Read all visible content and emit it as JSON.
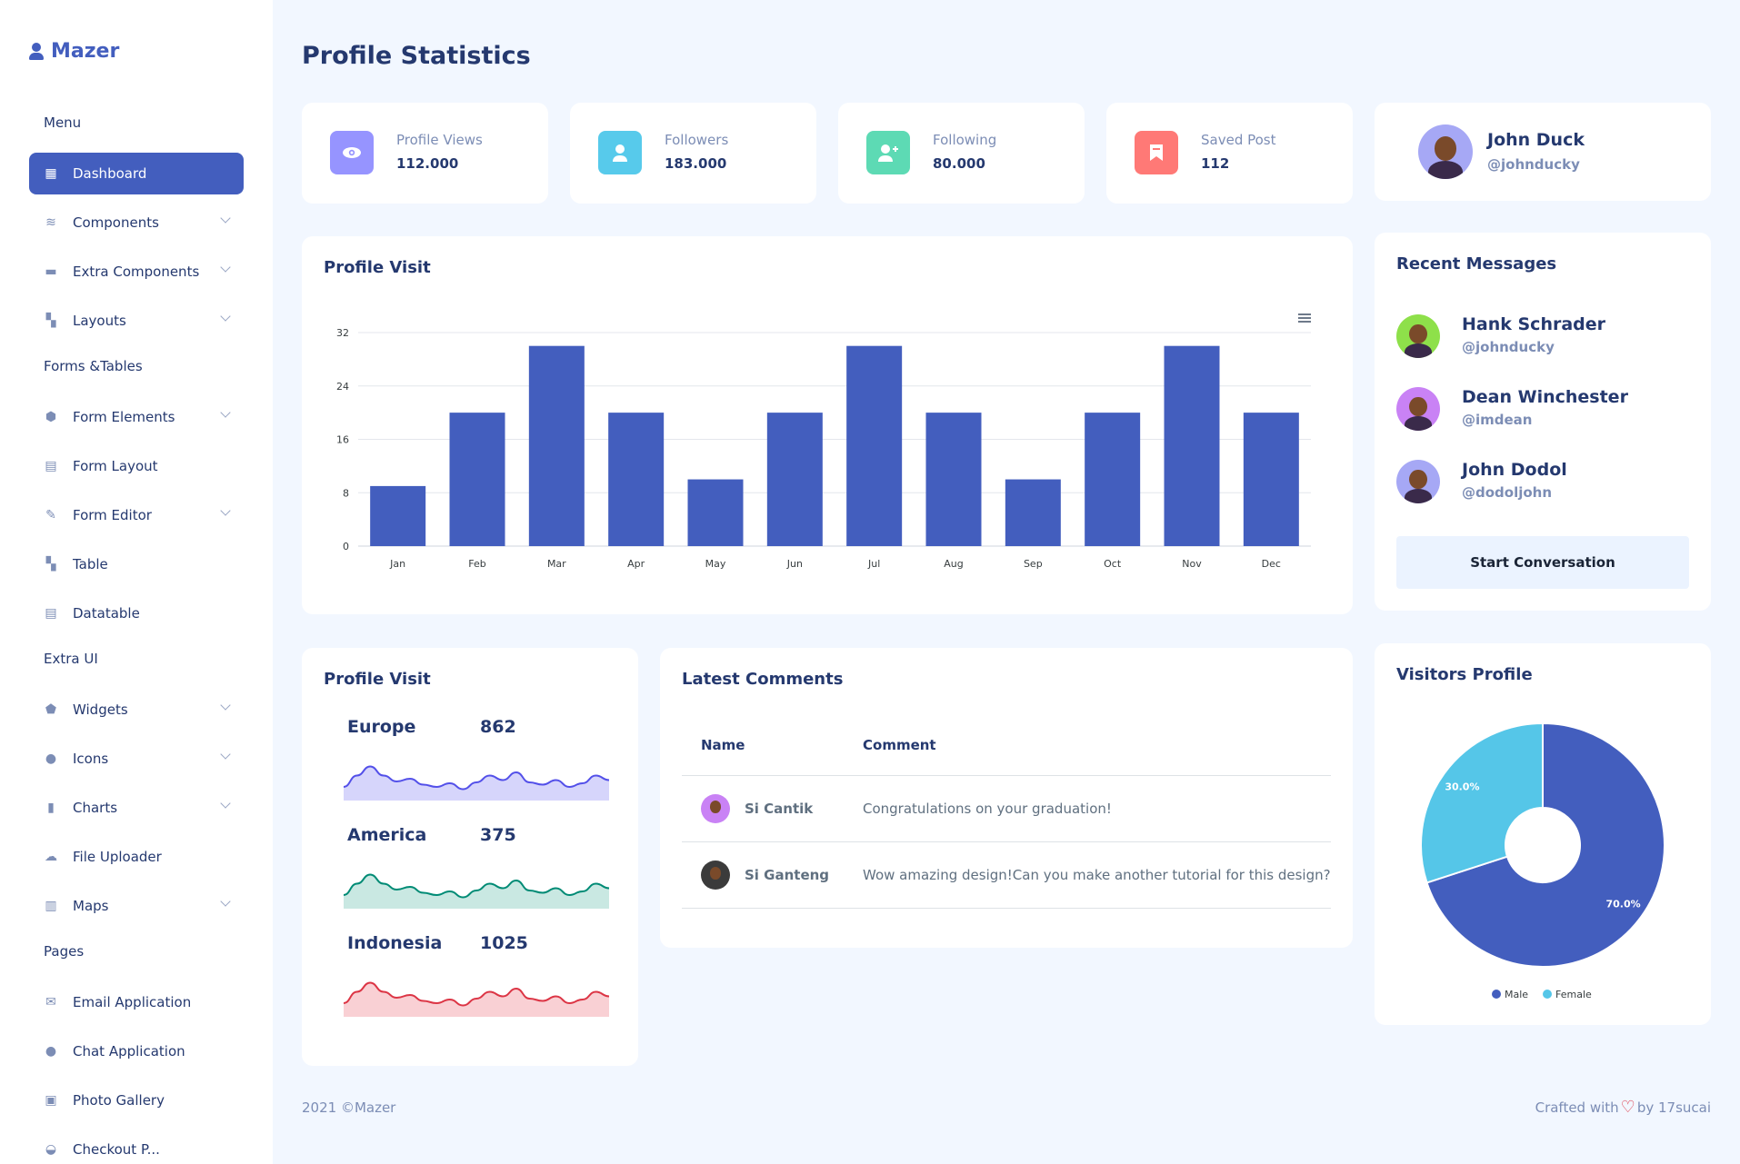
{
  "app": {
    "brand": "Mazer",
    "page_title": "Profile Statistics"
  },
  "sidebar": {
    "sections": [
      {
        "title": "Menu",
        "items": [
          {
            "label": "Dashboard",
            "icon": "grid-icon",
            "active": true,
            "chevron": false
          },
          {
            "label": "Components",
            "icon": "stack-icon",
            "chevron": true
          },
          {
            "label": "Extra Components",
            "icon": "collection-icon",
            "chevron": true
          },
          {
            "label": "Layouts",
            "icon": "layout-icon",
            "chevron": true
          }
        ]
      },
      {
        "title": "Forms &Tables",
        "items": [
          {
            "label": "Form Elements",
            "icon": "hexagon-icon",
            "chevron": true
          },
          {
            "label": "Form Layout",
            "icon": "file-text-icon",
            "chevron": false
          },
          {
            "label": "Form Editor",
            "icon": "pen-icon",
            "chevron": true
          },
          {
            "label": "Table",
            "icon": "table-icon",
            "chevron": false
          },
          {
            "label": "Datatable",
            "icon": "spreadsheet-icon",
            "chevron": false
          }
        ]
      },
      {
        "title": "Extra UI",
        "items": [
          {
            "label": "Widgets",
            "icon": "pentagon-icon",
            "chevron": true
          },
          {
            "label": "Icons",
            "icon": "egg-icon",
            "chevron": true
          },
          {
            "label": "Charts",
            "icon": "bar-chart-icon",
            "chevron": true
          },
          {
            "label": "File Uploader",
            "icon": "cloud-upload-icon",
            "chevron": false
          },
          {
            "label": "Maps",
            "icon": "map-icon",
            "chevron": true
          }
        ]
      },
      {
        "title": "Pages",
        "items": [
          {
            "label": "Email Application",
            "icon": "envelope-icon",
            "chevron": false
          },
          {
            "label": "Chat Application",
            "icon": "chat-icon",
            "chevron": false
          },
          {
            "label": "Photo Gallery",
            "icon": "image-icon",
            "chevron": false
          },
          {
            "label": "Checkout P...",
            "icon": "basket-icon",
            "chevron": false
          }
        ]
      }
    ]
  },
  "stats": [
    {
      "label": "Profile Views",
      "value": "112.000",
      "color": "#9694ff",
      "icon": "eye-icon"
    },
    {
      "label": "Followers",
      "value": "183.000",
      "color": "#57caeb",
      "icon": "user-icon"
    },
    {
      "label": "Following",
      "value": "80.000",
      "color": "#5ddab4",
      "icon": "user-plus-icon"
    },
    {
      "label": "Saved Post",
      "value": "112",
      "color": "#ff7976",
      "icon": "bookmark-icon"
    }
  ],
  "profile": {
    "name": "John Duck",
    "handle": "@johnducky"
  },
  "profile_visit_chart": {
    "title": "Profile Visit",
    "menu_icon": "hamburger-icon"
  },
  "recent_messages": {
    "title": "Recent Messages",
    "items": [
      {
        "name": "Hank Schrader",
        "handle": "@johnducky",
        "avatar_bg": "#8ee04a"
      },
      {
        "name": "Dean Winchester",
        "handle": "@imdean",
        "avatar_bg": "#c982f5"
      },
      {
        "name": "John Dodol",
        "handle": "@dodoljohn",
        "avatar_bg": "#a6a8f5"
      }
    ],
    "button": "Start Conversation"
  },
  "regions": {
    "title": "Profile Visit",
    "items": [
      {
        "name": "Europe",
        "value": "862",
        "color": "#5350e9",
        "fill": "#d6d5fb"
      },
      {
        "name": "America",
        "value": "375",
        "color": "#008b75",
        "fill": "#c9e8e2"
      },
      {
        "name": "Indonesia",
        "value": "1025",
        "color": "#dc3545",
        "fill": "#f9d0d4"
      }
    ]
  },
  "comments": {
    "title": "Latest Comments",
    "headers": [
      "Name",
      "Comment"
    ],
    "rows": [
      {
        "name": "Si Cantik",
        "comment": "Congratulations on your graduation!",
        "avatar_bg": "#c982f5"
      },
      {
        "name": "Si Ganteng",
        "comment": "Wow amazing design!Can you make another tutorial for this design?",
        "avatar_bg": "#3b3b3b"
      }
    ]
  },
  "visitors": {
    "title": "Visitors Profile"
  },
  "footer": {
    "left": "2021 ©Mazer",
    "right_prefix": "Crafted with",
    "right_suffix": "by 17sucai"
  },
  "chart_data": [
    {
      "type": "bar",
      "title": "Profile Visit",
      "categories": [
        "Jan",
        "Feb",
        "Mar",
        "Apr",
        "May",
        "Jun",
        "Jul",
        "Aug",
        "Sep",
        "Oct",
        "Nov",
        "Dec"
      ],
      "values": [
        9,
        20,
        30,
        20,
        10,
        20,
        30,
        20,
        10,
        20,
        30,
        20
      ],
      "ylim": [
        0,
        32
      ],
      "yticks": [
        "0",
        "8",
        "16",
        "24",
        "32"
      ],
      "color": "#435ebe",
      "grid": true
    },
    {
      "type": "pie",
      "title": "Visitors Profile",
      "labels": [
        "Male",
        "Female"
      ],
      "values": [
        70,
        30
      ],
      "value_labels": [
        "70.0%",
        "30.0%"
      ],
      "colors": [
        "#435ebe",
        "#55c6e8"
      ],
      "legend": "bottom"
    },
    {
      "type": "area",
      "title": "Europe",
      "values": [
        30,
        55,
        75,
        55,
        42,
        48,
        35,
        30,
        38,
        25,
        40,
        55,
        45,
        62,
        40,
        35,
        45,
        30,
        38,
        55,
        45
      ],
      "ylim": [
        0,
        100
      ]
    },
    {
      "type": "area",
      "title": "America",
      "values": [
        30,
        55,
        75,
        55,
        42,
        48,
        35,
        30,
        38,
        25,
        40,
        55,
        45,
        62,
        40,
        35,
        45,
        30,
        38,
        55,
        45
      ],
      "ylim": [
        0,
        100
      ]
    },
    {
      "type": "area",
      "title": "Indonesia",
      "values": [
        30,
        55,
        75,
        55,
        42,
        48,
        35,
        30,
        38,
        25,
        40,
        55,
        45,
        62,
        40,
        35,
        45,
        30,
        38,
        55,
        45
      ],
      "ylim": [
        0,
        100
      ]
    }
  ]
}
